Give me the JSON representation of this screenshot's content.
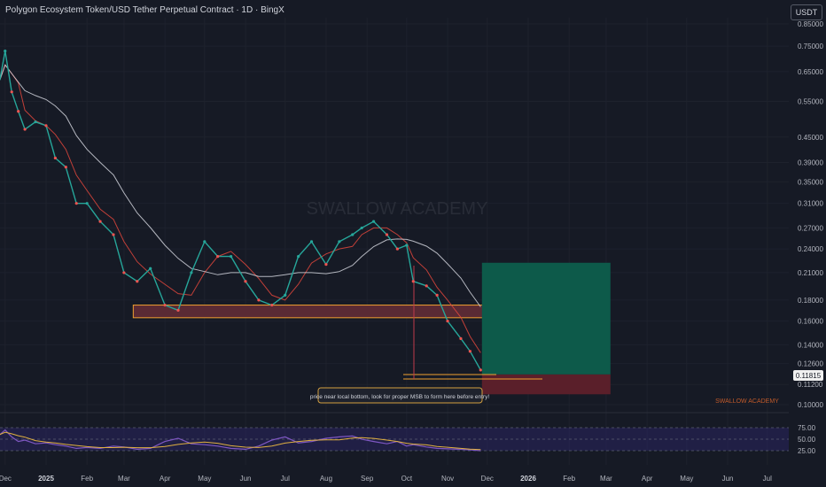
{
  "header": {
    "title": "Polygon Ecosystem Token/USD Tether Perpetual Contract · 1D · BingX",
    "currency": "USDT"
  },
  "watermark": "SWALLOW ACADEMY",
  "watermark_small": "SWALLOW ACADEMY",
  "annotation": "price near local bottom, look for proper MSB to form here before entry!",
  "price_label": "0.11815",
  "chart_data": {
    "type": "line",
    "price_axis": {
      "scale": "log",
      "ticks": [
        "0.85000",
        "0.75000",
        "0.65000",
        "0.55000",
        "0.45000",
        "0.39000",
        "0.35000",
        "0.31000",
        "0.27000",
        "0.24000",
        "0.21000",
        "0.18000",
        "0.16000",
        "0.14000",
        "0.12600",
        "0.11200",
        "0.10000"
      ]
    },
    "time_axis": {
      "ticks": [
        "Dec",
        "2025",
        "Feb",
        "Mar",
        "Apr",
        "May",
        "Jun",
        "Jul",
        "Aug",
        "Sep",
        "Oct",
        "Nov",
        "Dec",
        "2026",
        "Feb",
        "Mar",
        "Apr",
        "May",
        "Jun",
        "Jul"
      ]
    },
    "rsi_axis": {
      "ticks": [
        "75.00",
        "50.00",
        "25.00"
      ]
    },
    "support_zone": [
      0.163,
      0.175
    ],
    "target_zone": [
      0.1185,
      0.222
    ],
    "stop_zone": [
      0.106,
      0.1185
    ],
    "last_price": 0.11815,
    "price_series": [
      [
        "2024-12-01",
        0.62
      ],
      [
        "2024-12-05",
        0.73
      ],
      [
        "2024-12-10",
        0.58
      ],
      [
        "2024-12-15",
        0.52
      ],
      [
        "2024-12-20",
        0.47
      ],
      [
        "2024-12-28",
        0.49
      ],
      [
        "2025-01-05",
        0.48
      ],
      [
        "2025-01-12",
        0.4
      ],
      [
        "2025-01-20",
        0.38
      ],
      [
        "2025-01-28",
        0.31
      ],
      [
        "2025-02-05",
        0.31
      ],
      [
        "2025-02-15",
        0.28
      ],
      [
        "2025-02-25",
        0.26
      ],
      [
        "2025-03-05",
        0.21
      ],
      [
        "2025-03-15",
        0.2
      ],
      [
        "2025-03-25",
        0.215
      ],
      [
        "2025-04-05",
        0.175
      ],
      [
        "2025-04-15",
        0.17
      ],
      [
        "2025-04-25",
        0.21
      ],
      [
        "2025-05-05",
        0.25
      ],
      [
        "2025-05-15",
        0.23
      ],
      [
        "2025-05-25",
        0.23
      ],
      [
        "2025-06-05",
        0.2
      ],
      [
        "2025-06-15",
        0.18
      ],
      [
        "2025-06-25",
        0.175
      ],
      [
        "2025-07-05",
        0.185
      ],
      [
        "2025-07-15",
        0.23
      ],
      [
        "2025-07-25",
        0.25
      ],
      [
        "2025-08-05",
        0.22
      ],
      [
        "2025-08-15",
        0.25
      ],
      [
        "2025-08-25",
        0.26
      ],
      [
        "2025-09-01",
        0.27
      ],
      [
        "2025-09-10",
        0.28
      ],
      [
        "2025-09-20",
        0.26
      ],
      [
        "2025-09-28",
        0.24
      ],
      [
        "2025-10-05",
        0.245
      ],
      [
        "2025-10-10",
        0.2
      ],
      [
        "2025-10-20",
        0.195
      ],
      [
        "2025-10-28",
        0.185
      ],
      [
        "2025-11-05",
        0.16
      ],
      [
        "2025-11-15",
        0.145
      ],
      [
        "2025-11-22",
        0.135
      ],
      [
        "2025-11-30",
        0.1215
      ]
    ],
    "rsi_series": [
      60,
      70,
      55,
      45,
      48,
      40,
      42,
      38,
      35,
      30,
      32,
      30,
      35,
      33,
      28,
      30,
      45,
      52,
      40,
      38,
      35,
      30,
      28,
      35,
      48,
      55,
      42,
      45,
      52,
      55,
      57,
      50,
      45,
      40,
      45,
      35,
      38,
      33,
      30,
      29,
      28,
      27,
      25
    ]
  }
}
